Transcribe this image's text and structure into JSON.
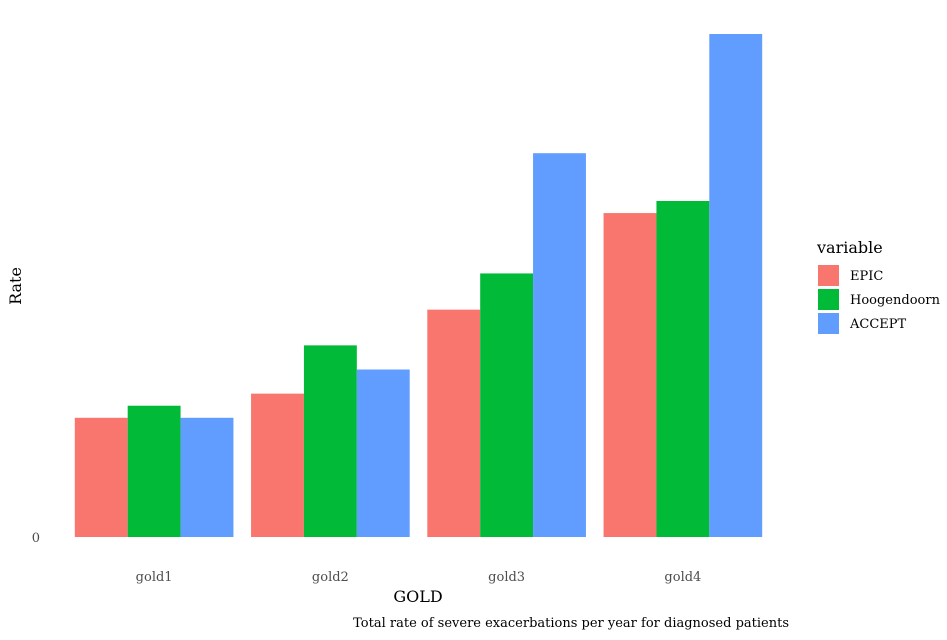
{
  "chart_data": {
    "type": "bar",
    "title": "",
    "xlabel": "GOLD",
    "ylabel": "Rate",
    "caption": "Total rate of severe exacerbations per year for diagnosed patients",
    "categories": [
      "gold1",
      "gold2",
      "gold3",
      "gold4"
    ],
    "y_ticks": [
      0
    ],
    "ylim": [
      0,
      1.0
    ],
    "grid": false,
    "legend": {
      "title": "variable",
      "position": "right"
    },
    "series": [
      {
        "name": "EPIC",
        "color": "#F8766D",
        "values": [
          0.237,
          0.285,
          0.452,
          0.644
        ]
      },
      {
        "name": "Hoogendoorn",
        "color": "#00BA38",
        "values": [
          0.261,
          0.381,
          0.524,
          0.668
        ]
      },
      {
        "name": "ACCEPT",
        "color": "#619CFF",
        "values": [
          0.237,
          0.333,
          0.763,
          1.0
        ]
      }
    ]
  }
}
